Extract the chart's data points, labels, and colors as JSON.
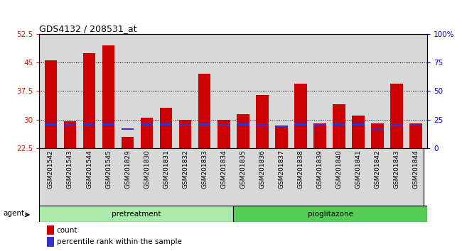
{
  "title": "GDS4132 / 208531_at",
  "categories": [
    "GSM201542",
    "GSM201543",
    "GSM201544",
    "GSM201545",
    "GSM201829",
    "GSM201830",
    "GSM201831",
    "GSM201832",
    "GSM201833",
    "GSM201834",
    "GSM201835",
    "GSM201836",
    "GSM201837",
    "GSM201838",
    "GSM201839",
    "GSM201840",
    "GSM201841",
    "GSM201842",
    "GSM201843",
    "GSM201844"
  ],
  "red_values": [
    45.5,
    29.5,
    47.5,
    49.5,
    25.5,
    30.5,
    33.0,
    30.0,
    42.0,
    30.0,
    31.5,
    36.5,
    28.0,
    39.5,
    29.0,
    34.0,
    31.0,
    29.0,
    39.5,
    29.0
  ],
  "blue_values": [
    28.8,
    28.5,
    28.8,
    28.8,
    27.5,
    28.8,
    28.8,
    28.5,
    28.8,
    28.5,
    28.8,
    28.5,
    28.2,
    28.8,
    28.5,
    28.8,
    28.8,
    27.5,
    28.5,
    28.5
  ],
  "ylim_left": [
    22.5,
    52.5
  ],
  "ylim_right": [
    0,
    100
  ],
  "yticks_left": [
    22.5,
    30,
    37.5,
    45,
    52.5
  ],
  "yticks_right": [
    0,
    25,
    50,
    75,
    100
  ],
  "ytick_labels_right": [
    "0",
    "25",
    "50",
    "75",
    "100%"
  ],
  "bar_color": "#cc0000",
  "blue_color": "#3333cc",
  "group1_n": 10,
  "group2_n": 10,
  "group1_label": "pretreatment",
  "group2_label": "pioglitazone",
  "agent_label": "agent",
  "legend_count": "count",
  "legend_pct": "percentile rank within the sample",
  "bg_plot": "#d8d8d8",
  "bg_group1": "#aaeaaa",
  "bg_group2": "#55cc55",
  "left_tick_color": "#cc2200",
  "right_tick_color": "#0000cc"
}
